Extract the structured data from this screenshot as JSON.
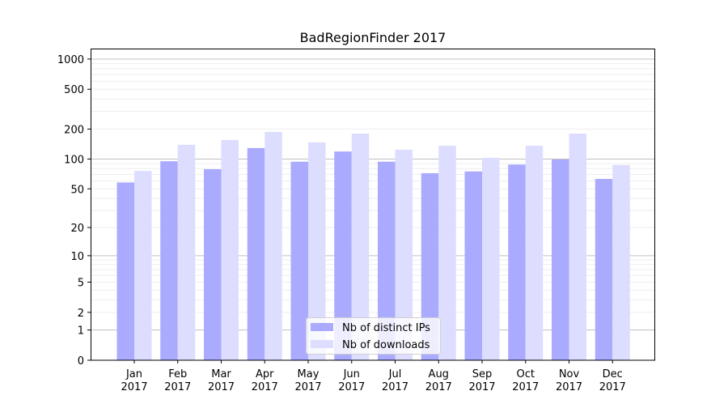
{
  "chart_data": {
    "type": "bar",
    "title": "BadRegionFinder 2017",
    "xlabel": "",
    "ylabel": "",
    "yscale": "symlog (log10(1+y))",
    "ylim": [
      0,
      1270
    ],
    "yticks": [
      0,
      1,
      2,
      5,
      10,
      20,
      50,
      100,
      200,
      500,
      1000
    ],
    "grid": true,
    "legend_position": "bottom-center",
    "categories": [
      "Jan\n2017",
      "Feb\n2017",
      "Mar\n2017",
      "Apr\n2017",
      "May\n2017",
      "Jun\n2017",
      "Jul\n2017",
      "Aug\n2017",
      "Sep\n2017",
      "Oct\n2017",
      "Nov\n2017",
      "Dec\n2017"
    ],
    "series": [
      {
        "name": "Nb of distinct IPs",
        "color": "#aaaaff",
        "values": [
          58,
          95,
          79,
          129,
          94,
          119,
          94,
          72,
          75,
          88,
          99,
          63
        ]
      },
      {
        "name": "Nb of downloads",
        "color": "#ddddff",
        "values": [
          76,
          139,
          155,
          187,
          147,
          180,
          124,
          136,
          103,
          136,
          180,
          87
        ]
      }
    ]
  }
}
